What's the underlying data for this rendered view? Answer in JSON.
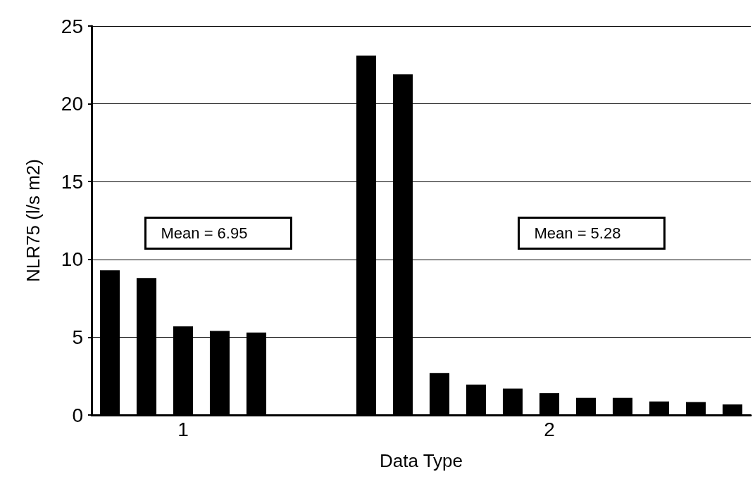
{
  "chart_data": {
    "type": "bar",
    "xlabel": "Data Type",
    "ylabel": "NLR75 (l/s m2)",
    "categories": [
      null,
      null,
      "1",
      null,
      null,
      null,
      null,
      null,
      null,
      null,
      null,
      null,
      "2",
      null,
      null,
      null,
      null,
      null
    ],
    "values": [
      9.3,
      8.8,
      5.7,
      5.4,
      5.3,
      null,
      null,
      23.1,
      21.9,
      2.7,
      1.95,
      1.7,
      1.4,
      1.1,
      1.1,
      0.87,
      0.83,
      0.68
    ],
    "color": "#000000",
    "ylim": [
      0,
      25
    ],
    "yticks": [
      0,
      5,
      10,
      15,
      20,
      25
    ],
    "grid": "y",
    "annotations": [
      "Mean = 6.95",
      "Mean = 5.28"
    ]
  }
}
